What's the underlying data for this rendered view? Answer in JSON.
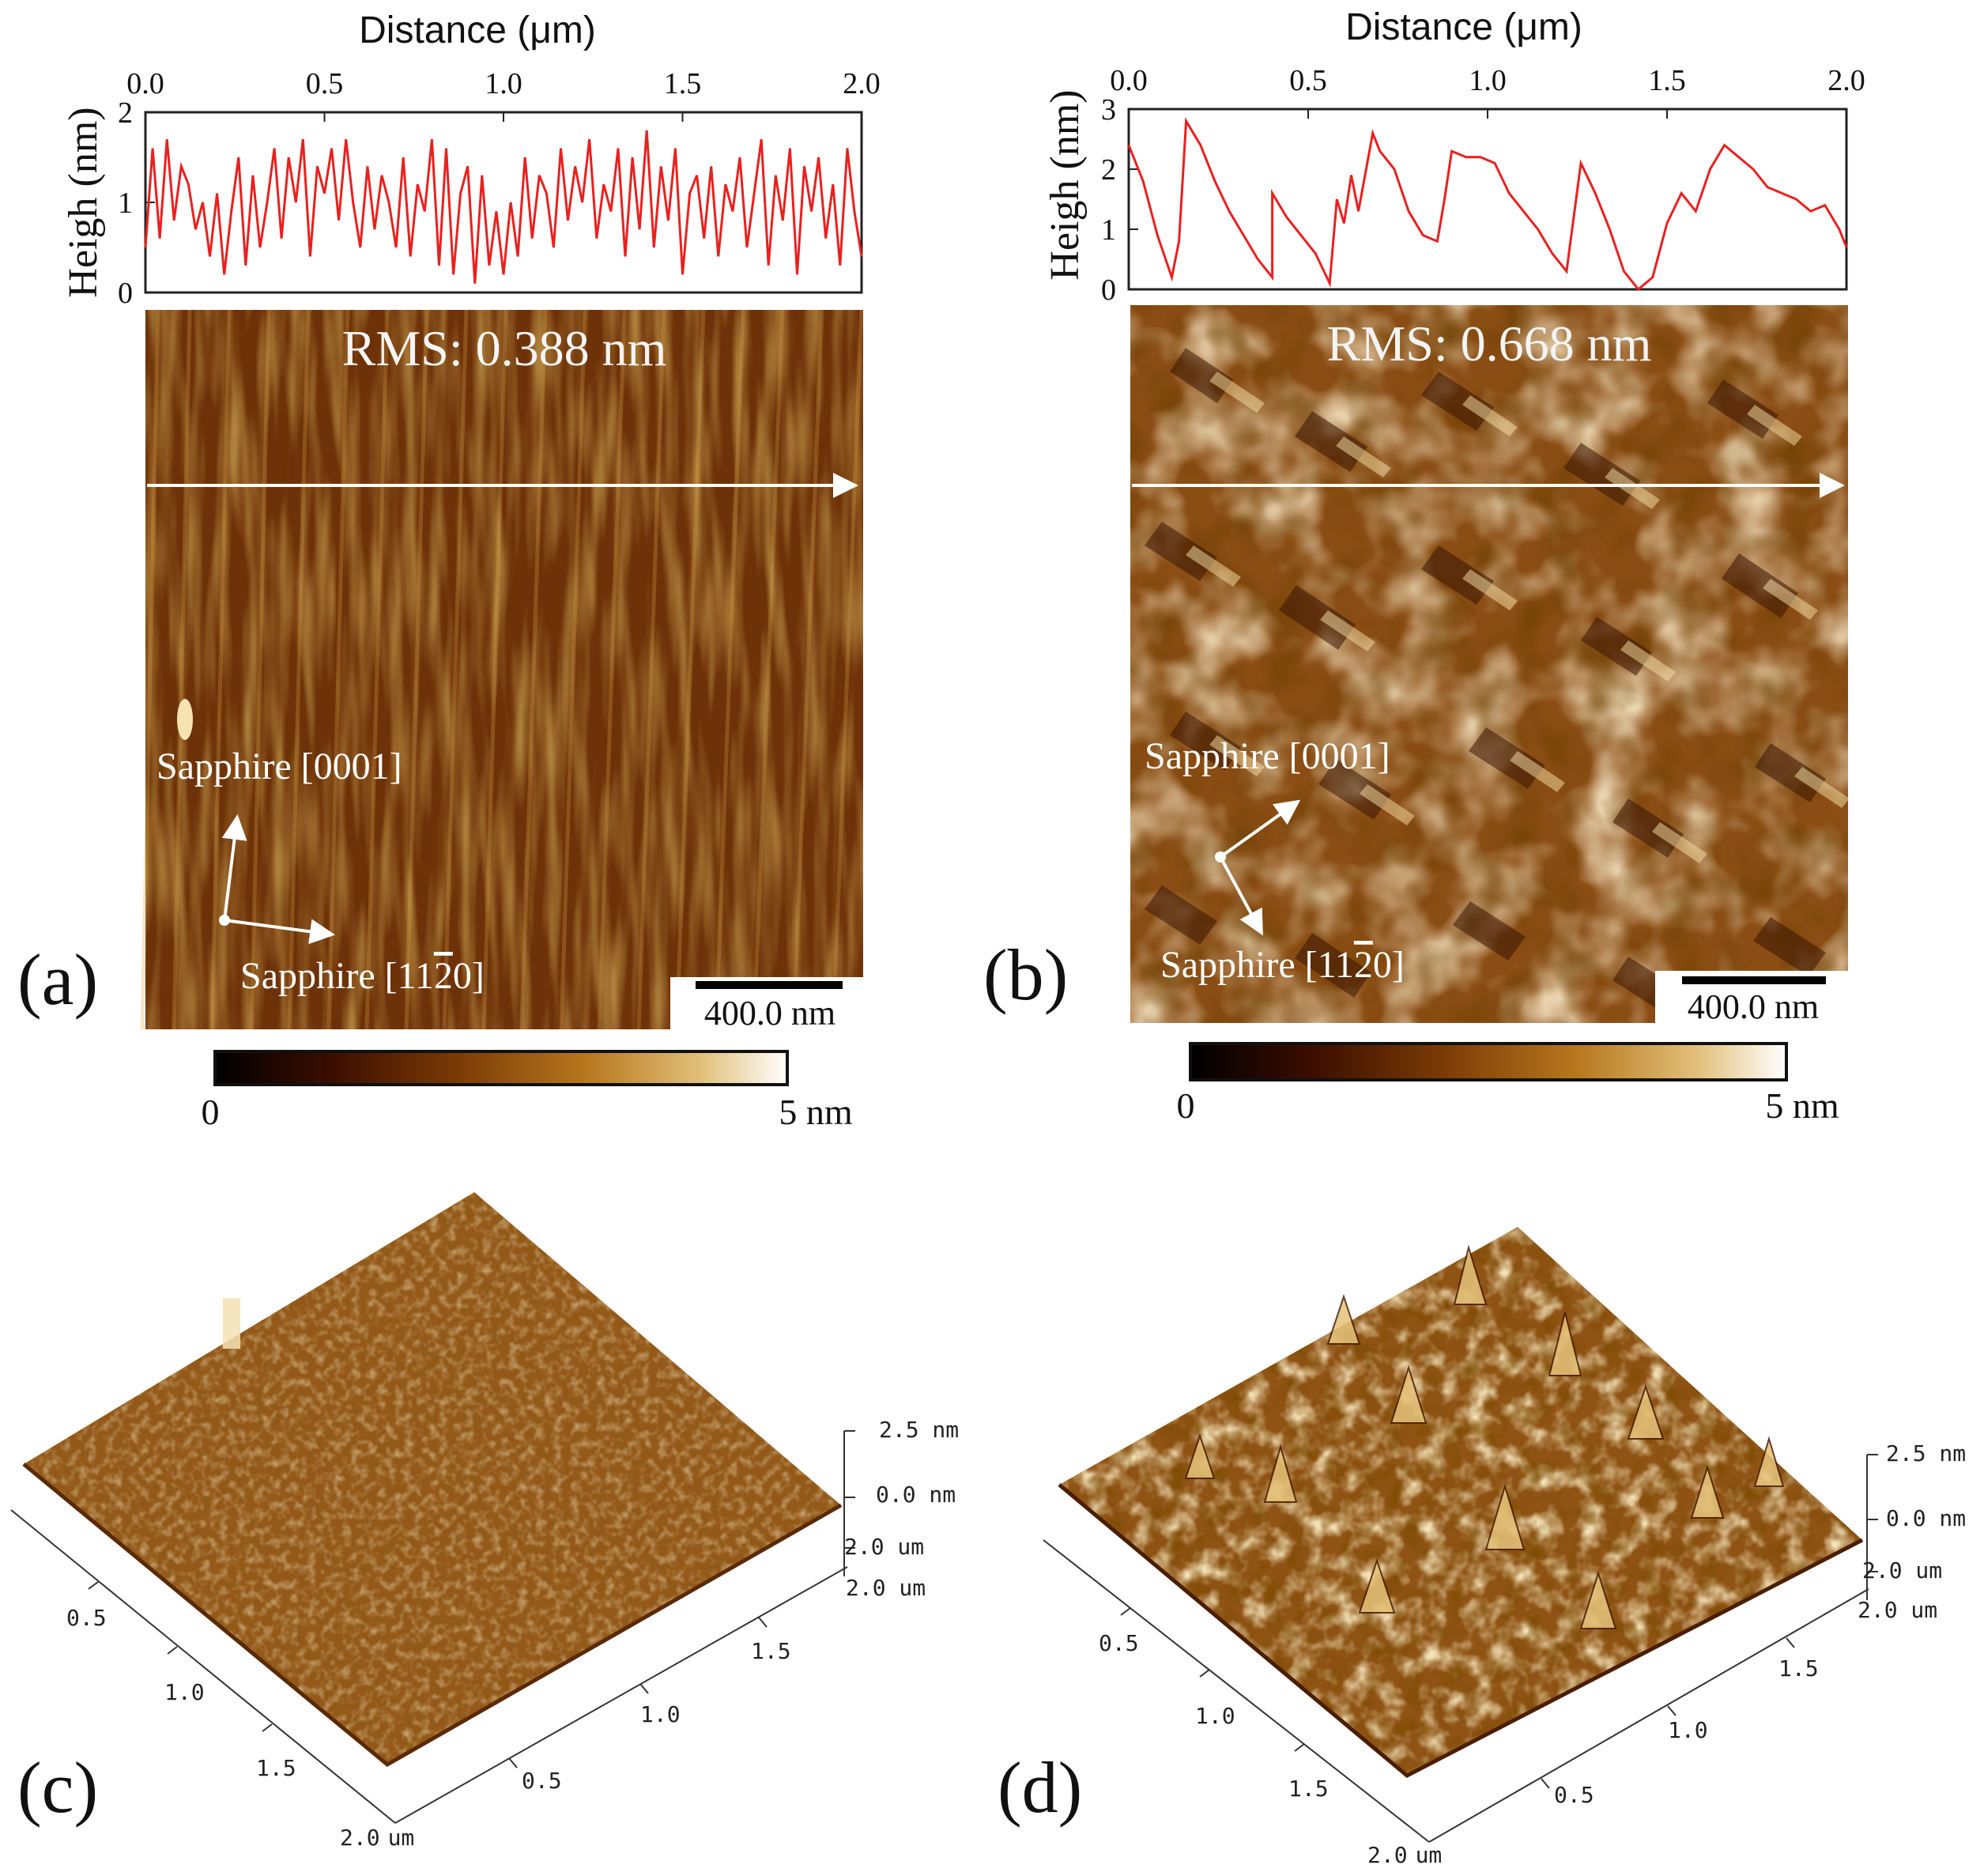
{
  "panels": {
    "a": {
      "label": "(a)",
      "rms": "RMS: 0.388 nm",
      "scale_bar": "400.0 nm",
      "dir1": "Sapphire [0001]",
      "dir2": "Sapphire [11",
      "dir2_bar": "2",
      "dir2_end": "0]",
      "colorbar": {
        "min": "0",
        "max": "5 nm"
      }
    },
    "b": {
      "label": "(b)",
      "rms": "RMS: 0.668 nm",
      "scale_bar": "400.0 nm",
      "dir1": "Sapphire [0001]",
      "dir2": "Sapphire [11",
      "dir2_bar": "2",
      "dir2_end": "0]",
      "colorbar": {
        "min": "0",
        "max": "5 nm"
      }
    },
    "c": {
      "label": "(c)",
      "z_labels": [
        "2.5 nm",
        "0.0 nm"
      ],
      "y_end": "2.0 um",
      "x_end": "2.0 um",
      "x_ticks": [
        "0.5",
        "1.0",
        "1.5",
        "2.0"
      ],
      "x_tick_unit": "um",
      "y_ticks": [
        "1.5",
        "1.0",
        "0.5"
      ]
    },
    "d": {
      "label": "(d)",
      "z_labels": [
        "2.5 nm",
        "0.0 nm"
      ],
      "y_end": "2.0 um",
      "x_end": "2.0 um",
      "x_ticks": [
        "0.5",
        "1.0",
        "1.5",
        "2.0"
      ],
      "x_tick_unit": "um",
      "y_ticks": [
        "1.5",
        "1.0",
        "0.5"
      ]
    }
  },
  "chart_data": [
    {
      "id": "profile-a",
      "type": "line",
      "title": "",
      "xlabel": "Distance (μm)",
      "ylabel": "Heigh (nm)",
      "xlim": [
        0,
        2.0
      ],
      "ylim": [
        0,
        2
      ],
      "x_ticks": [
        "0.0",
        "0.5",
        "1.0",
        "1.5",
        "2.0"
      ],
      "y_ticks": [
        "0",
        "1",
        "2"
      ],
      "color": "#e8211f",
      "series": [
        {
          "name": "height profile (a)",
          "x": [
            0.0,
            0.02,
            0.04,
            0.06,
            0.08,
            0.1,
            0.12,
            0.14,
            0.16,
            0.18,
            0.2,
            0.22,
            0.24,
            0.26,
            0.28,
            0.3,
            0.32,
            0.34,
            0.36,
            0.38,
            0.4,
            0.42,
            0.44,
            0.46,
            0.48,
            0.5,
            0.52,
            0.54,
            0.56,
            0.58,
            0.6,
            0.62,
            0.64,
            0.66,
            0.68,
            0.7,
            0.72,
            0.74,
            0.76,
            0.78,
            0.8,
            0.82,
            0.84,
            0.86,
            0.88,
            0.9,
            0.92,
            0.94,
            0.96,
            0.98,
            1.0,
            1.02,
            1.04,
            1.06,
            1.08,
            1.1,
            1.12,
            1.14,
            1.16,
            1.18,
            1.2,
            1.22,
            1.24,
            1.26,
            1.28,
            1.3,
            1.32,
            1.34,
            1.36,
            1.38,
            1.4,
            1.42,
            1.44,
            1.46,
            1.48,
            1.5,
            1.52,
            1.54,
            1.56,
            1.58,
            1.6,
            1.62,
            1.64,
            1.66,
            1.68,
            1.7,
            1.72,
            1.74,
            1.76,
            1.78,
            1.8,
            1.82,
            1.84,
            1.86,
            1.88,
            1.9,
            1.92,
            1.94,
            1.96,
            1.98,
            2.0
          ],
          "values": [
            0.5,
            1.6,
            0.6,
            1.7,
            0.8,
            1.4,
            1.2,
            0.7,
            1.0,
            0.4,
            1.1,
            0.2,
            0.9,
            1.5,
            0.3,
            1.3,
            0.5,
            1.0,
            1.6,
            0.6,
            1.5,
            1.0,
            1.7,
            0.4,
            1.4,
            1.1,
            1.6,
            0.8,
            1.7,
            1.0,
            0.5,
            1.4,
            0.7,
            1.3,
            1.0,
            0.5,
            1.5,
            0.4,
            1.2,
            0.9,
            1.7,
            0.3,
            1.6,
            0.2,
            1.1,
            1.4,
            0.1,
            1.3,
            0.3,
            0.9,
            0.2,
            1.0,
            0.4,
            1.5,
            0.6,
            1.3,
            1.1,
            0.5,
            1.6,
            0.8,
            1.4,
            1.0,
            1.7,
            0.6,
            1.2,
            0.9,
            1.6,
            0.4,
            1.5,
            0.7,
            1.8,
            0.5,
            1.4,
            0.8,
            1.6,
            0.2,
            1.1,
            1.3,
            0.6,
            1.4,
            0.4,
            1.2,
            0.9,
            1.5,
            0.5,
            1.1,
            1.7,
            0.3,
            1.3,
            0.8,
            1.6,
            0.2,
            1.4,
            0.9,
            1.5,
            0.6,
            1.2,
            0.3,
            1.6,
            0.9,
            0.4
          ]
        }
      ]
    },
    {
      "id": "profile-b",
      "type": "line",
      "title": "",
      "xlabel": "Distance (μm)",
      "ylabel": "Heigh (nm)",
      "xlim": [
        0,
        2.0
      ],
      "ylim": [
        0,
        3
      ],
      "x_ticks": [
        "0.0",
        "0.5",
        "1.0",
        "1.5",
        "2.0"
      ],
      "y_ticks": [
        "0",
        "1",
        "2",
        "3"
      ],
      "color": "#e8211f",
      "series": [
        {
          "name": "height profile (b)",
          "x": [
            0.0,
            0.04,
            0.08,
            0.12,
            0.14,
            0.16,
            0.2,
            0.24,
            0.28,
            0.32,
            0.36,
            0.4,
            0.4,
            0.44,
            0.48,
            0.52,
            0.56,
            0.58,
            0.6,
            0.62,
            0.64,
            0.68,
            0.7,
            0.74,
            0.78,
            0.82,
            0.86,
            0.88,
            0.9,
            0.94,
            0.98,
            1.02,
            1.06,
            1.1,
            1.14,
            1.18,
            1.22,
            1.26,
            1.3,
            1.34,
            1.38,
            1.42,
            1.46,
            1.5,
            1.54,
            1.58,
            1.62,
            1.66,
            1.7,
            1.74,
            1.78,
            1.82,
            1.86,
            1.9,
            1.94,
            1.98,
            2.0
          ],
          "values": [
            2.4,
            1.8,
            0.9,
            0.2,
            0.8,
            2.8,
            2.4,
            1.8,
            1.3,
            0.9,
            0.5,
            0.2,
            1.6,
            1.2,
            0.9,
            0.6,
            0.1,
            1.5,
            1.1,
            1.9,
            1.3,
            2.6,
            2.3,
            2.0,
            1.3,
            0.9,
            0.8,
            1.5,
            2.3,
            2.2,
            2.2,
            2.1,
            1.6,
            1.3,
            1.0,
            0.6,
            0.3,
            2.1,
            1.6,
            1.0,
            0.3,
            0.0,
            0.2,
            1.1,
            1.6,
            1.3,
            2.0,
            2.4,
            2.2,
            2.0,
            1.7,
            1.6,
            1.5,
            1.3,
            1.4,
            1.0,
            0.7
          ]
        }
      ]
    },
    {
      "id": "colorbar-a",
      "type": "heatmap",
      "title": "",
      "range": [
        0,
        5
      ],
      "unit": "nm",
      "colors": [
        "#000000",
        "#3a0d00",
        "#7a3a05",
        "#b8781e",
        "#e2c07a",
        "#ffffff"
      ]
    },
    {
      "id": "colorbar-b",
      "type": "heatmap",
      "title": "",
      "range": [
        0,
        5
      ],
      "unit": "nm",
      "colors": [
        "#000000",
        "#3a0d00",
        "#7a3a05",
        "#b8781e",
        "#e2c07a",
        "#ffffff"
      ]
    }
  ]
}
